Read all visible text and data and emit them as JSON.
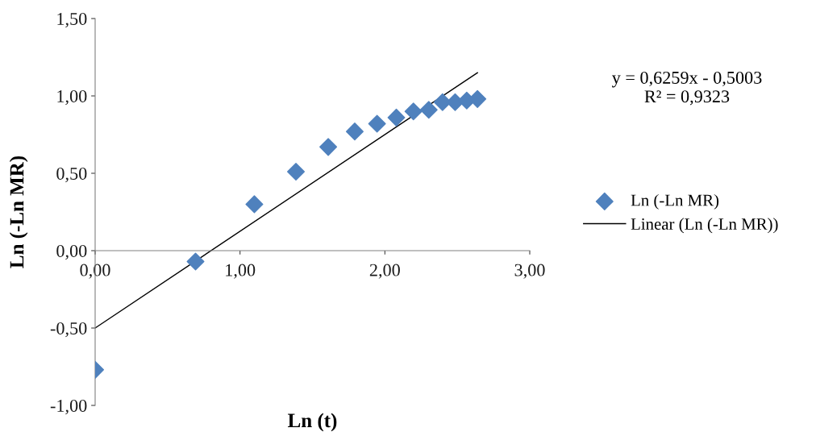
{
  "chart_data": {
    "type": "scatter",
    "xlabel": "Ln (t)",
    "ylabel": "Ln (-Ln MR)",
    "series": [
      {
        "name": "Ln (-Ln MR)",
        "color": "#4f81bd",
        "marker": "diamond",
        "x": [
          0,
          0.693,
          1.099,
          1.386,
          1.609,
          1.792,
          1.946,
          2.079,
          2.197,
          2.303,
          2.398,
          2.485,
          2.565,
          2.639
        ],
        "values": [
          -0.77,
          -0.07,
          0.3,
          0.51,
          0.67,
          0.77,
          0.82,
          0.86,
          0.9,
          0.91,
          0.96,
          0.96,
          0.97,
          0.98
        ]
      },
      {
        "name": "Linear (Ln (-Ln MR))",
        "type": "line",
        "color": "#000000",
        "marker": "none",
        "line_style": "solid",
        "x": [
          0,
          2.639
        ],
        "values": [
          -0.5,
          1.15
        ]
      }
    ],
    "xlim": [
      0,
      3
    ],
    "ylim": [
      -1,
      1.5
    ],
    "xticks": [
      {
        "value": 0,
        "label": "0,00"
      },
      {
        "value": 1,
        "label": "1,00"
      },
      {
        "value": 2,
        "label": "2,00"
      },
      {
        "value": 3,
        "label": "3,00"
      }
    ],
    "yticks": [
      {
        "value": -1,
        "label": "-1,00"
      },
      {
        "value": -0.5,
        "label": "-0,50"
      },
      {
        "value": 0,
        "label": "0,00"
      },
      {
        "value": 0.5,
        "label": "0,50"
      },
      {
        "value": 1,
        "label": "1,00"
      },
      {
        "value": 1.5,
        "label": "1,50"
      }
    ],
    "annotations": [
      "y = 0,6259x - 0,5003\nR² = 0,9323"
    ],
    "grid": false,
    "legend": "right"
  }
}
